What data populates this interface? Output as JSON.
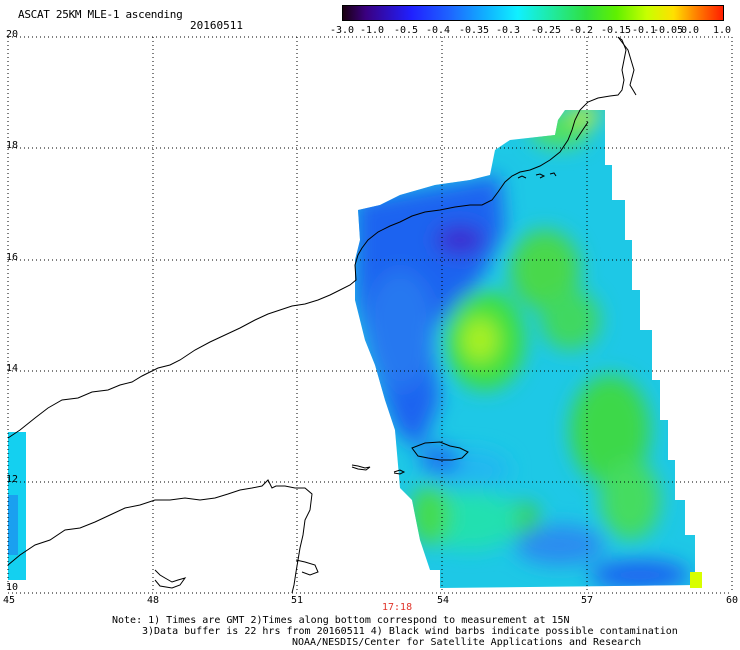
{
  "header": {
    "title": "ASCAT 25KM MLE-1 ascending",
    "date": "20160511"
  },
  "colorbar": {
    "labels": [
      "-3.0",
      "-1.0",
      "-0.5",
      "-0.4",
      "-0.35",
      "-0.3",
      "-0.25",
      "-0.2",
      "-0.15",
      "-0.1",
      "-0.05",
      "0.0",
      "1.0"
    ],
    "colors": [
      "#2a0030",
      "#3a00a0",
      "#1a1aff",
      "#2d6cff",
      "#1ea8ff",
      "#1ee6ff",
      "#20e8b0",
      "#3ade3a",
      "#80ff00",
      "#d8ff00",
      "#ffb000",
      "#ff5000",
      "#ff1e00"
    ]
  },
  "map": {
    "lat_labels": [
      "20",
      "18",
      "16",
      "14",
      "12",
      "10"
    ],
    "lon_labels": [
      "45",
      "48",
      "51",
      "54",
      "57",
      "60"
    ],
    "time_label": "17:18"
  },
  "notes": {
    "line1": "Note: 1) Times are GMT 2)Times along bottom correspond to measurement at 15N",
    "line2": "3)Data buffer is 22 hrs from 20160511 4) Black wind barbs indicate possible contamination",
    "line3": "NOAA/NESDIS/Center for Satellite Applications and Research"
  }
}
